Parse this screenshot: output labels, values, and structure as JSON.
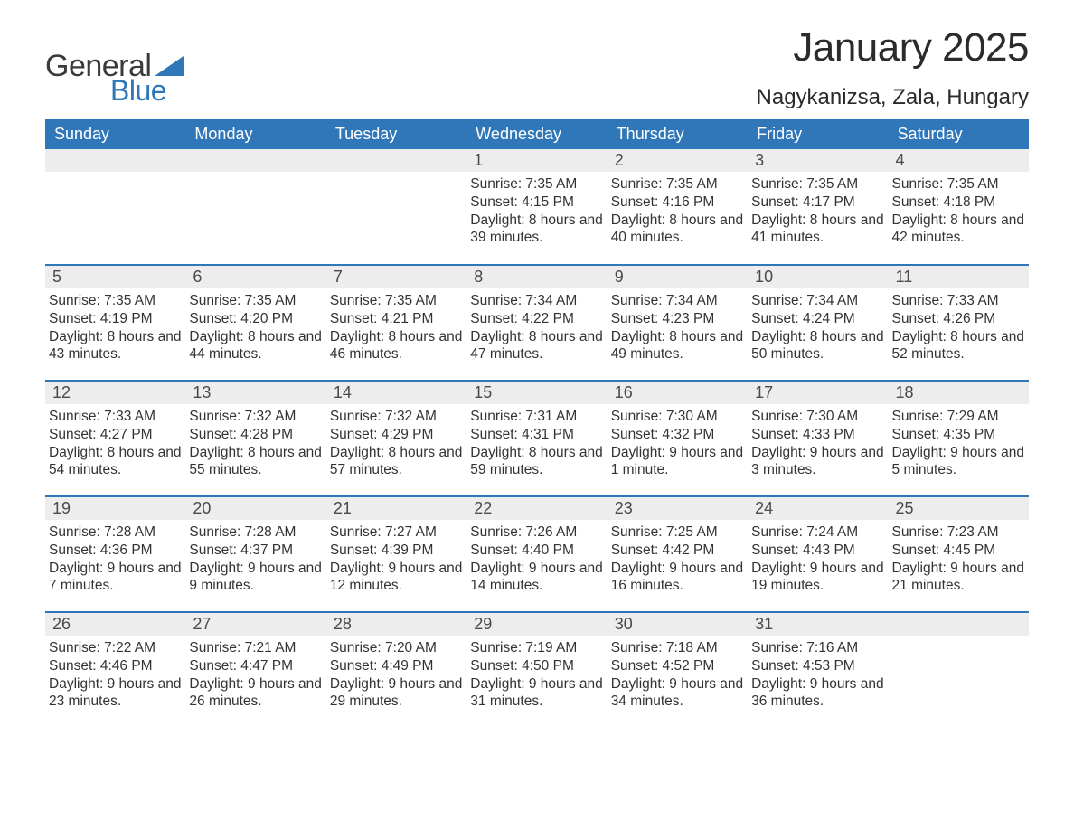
{
  "brand": {
    "word1": "General",
    "word2": "Blue",
    "triangle_color": "#2f77b9"
  },
  "title": "January 2025",
  "location": "Nagykanizsa, Zala, Hungary",
  "colors": {
    "header_bg": "#2f77b9",
    "header_text": "#ffffff",
    "daynum_bg": "#ededed",
    "rule": "#2f77b9",
    "body_text": "#333333"
  },
  "day_headers": [
    "Sunday",
    "Monday",
    "Tuesday",
    "Wednesday",
    "Thursday",
    "Friday",
    "Saturday"
  ],
  "weeks": [
    [
      null,
      null,
      null,
      {
        "n": "1",
        "sr": "7:35 AM",
        "ss": "4:15 PM",
        "dl": "8 hours and 39 minutes."
      },
      {
        "n": "2",
        "sr": "7:35 AM",
        "ss": "4:16 PM",
        "dl": "8 hours and 40 minutes."
      },
      {
        "n": "3",
        "sr": "7:35 AM",
        "ss": "4:17 PM",
        "dl": "8 hours and 41 minutes."
      },
      {
        "n": "4",
        "sr": "7:35 AM",
        "ss": "4:18 PM",
        "dl": "8 hours and 42 minutes."
      }
    ],
    [
      {
        "n": "5",
        "sr": "7:35 AM",
        "ss": "4:19 PM",
        "dl": "8 hours and 43 minutes."
      },
      {
        "n": "6",
        "sr": "7:35 AM",
        "ss": "4:20 PM",
        "dl": "8 hours and 44 minutes."
      },
      {
        "n": "7",
        "sr": "7:35 AM",
        "ss": "4:21 PM",
        "dl": "8 hours and 46 minutes."
      },
      {
        "n": "8",
        "sr": "7:34 AM",
        "ss": "4:22 PM",
        "dl": "8 hours and 47 minutes."
      },
      {
        "n": "9",
        "sr": "7:34 AM",
        "ss": "4:23 PM",
        "dl": "8 hours and 49 minutes."
      },
      {
        "n": "10",
        "sr": "7:34 AM",
        "ss": "4:24 PM",
        "dl": "8 hours and 50 minutes."
      },
      {
        "n": "11",
        "sr": "7:33 AM",
        "ss": "4:26 PM",
        "dl": "8 hours and 52 minutes."
      }
    ],
    [
      {
        "n": "12",
        "sr": "7:33 AM",
        "ss": "4:27 PM",
        "dl": "8 hours and 54 minutes."
      },
      {
        "n": "13",
        "sr": "7:32 AM",
        "ss": "4:28 PM",
        "dl": "8 hours and 55 minutes."
      },
      {
        "n": "14",
        "sr": "7:32 AM",
        "ss": "4:29 PM",
        "dl": "8 hours and 57 minutes."
      },
      {
        "n": "15",
        "sr": "7:31 AM",
        "ss": "4:31 PM",
        "dl": "8 hours and 59 minutes."
      },
      {
        "n": "16",
        "sr": "7:30 AM",
        "ss": "4:32 PM",
        "dl": "9 hours and 1 minute."
      },
      {
        "n": "17",
        "sr": "7:30 AM",
        "ss": "4:33 PM",
        "dl": "9 hours and 3 minutes."
      },
      {
        "n": "18",
        "sr": "7:29 AM",
        "ss": "4:35 PM",
        "dl": "9 hours and 5 minutes."
      }
    ],
    [
      {
        "n": "19",
        "sr": "7:28 AM",
        "ss": "4:36 PM",
        "dl": "9 hours and 7 minutes."
      },
      {
        "n": "20",
        "sr": "7:28 AM",
        "ss": "4:37 PM",
        "dl": "9 hours and 9 minutes."
      },
      {
        "n": "21",
        "sr": "7:27 AM",
        "ss": "4:39 PM",
        "dl": "9 hours and 12 minutes."
      },
      {
        "n": "22",
        "sr": "7:26 AM",
        "ss": "4:40 PM",
        "dl": "9 hours and 14 minutes."
      },
      {
        "n": "23",
        "sr": "7:25 AM",
        "ss": "4:42 PM",
        "dl": "9 hours and 16 minutes."
      },
      {
        "n": "24",
        "sr": "7:24 AM",
        "ss": "4:43 PM",
        "dl": "9 hours and 19 minutes."
      },
      {
        "n": "25",
        "sr": "7:23 AM",
        "ss": "4:45 PM",
        "dl": "9 hours and 21 minutes."
      }
    ],
    [
      {
        "n": "26",
        "sr": "7:22 AM",
        "ss": "4:46 PM",
        "dl": "9 hours and 23 minutes."
      },
      {
        "n": "27",
        "sr": "7:21 AM",
        "ss": "4:47 PM",
        "dl": "9 hours and 26 minutes."
      },
      {
        "n": "28",
        "sr": "7:20 AM",
        "ss": "4:49 PM",
        "dl": "9 hours and 29 minutes."
      },
      {
        "n": "29",
        "sr": "7:19 AM",
        "ss": "4:50 PM",
        "dl": "9 hours and 31 minutes."
      },
      {
        "n": "30",
        "sr": "7:18 AM",
        "ss": "4:52 PM",
        "dl": "9 hours and 34 minutes."
      },
      {
        "n": "31",
        "sr": "7:16 AM",
        "ss": "4:53 PM",
        "dl": "9 hours and 36 minutes."
      },
      null
    ]
  ],
  "labels": {
    "sunrise": "Sunrise: ",
    "sunset": "Sunset: ",
    "daylight": "Daylight: "
  }
}
